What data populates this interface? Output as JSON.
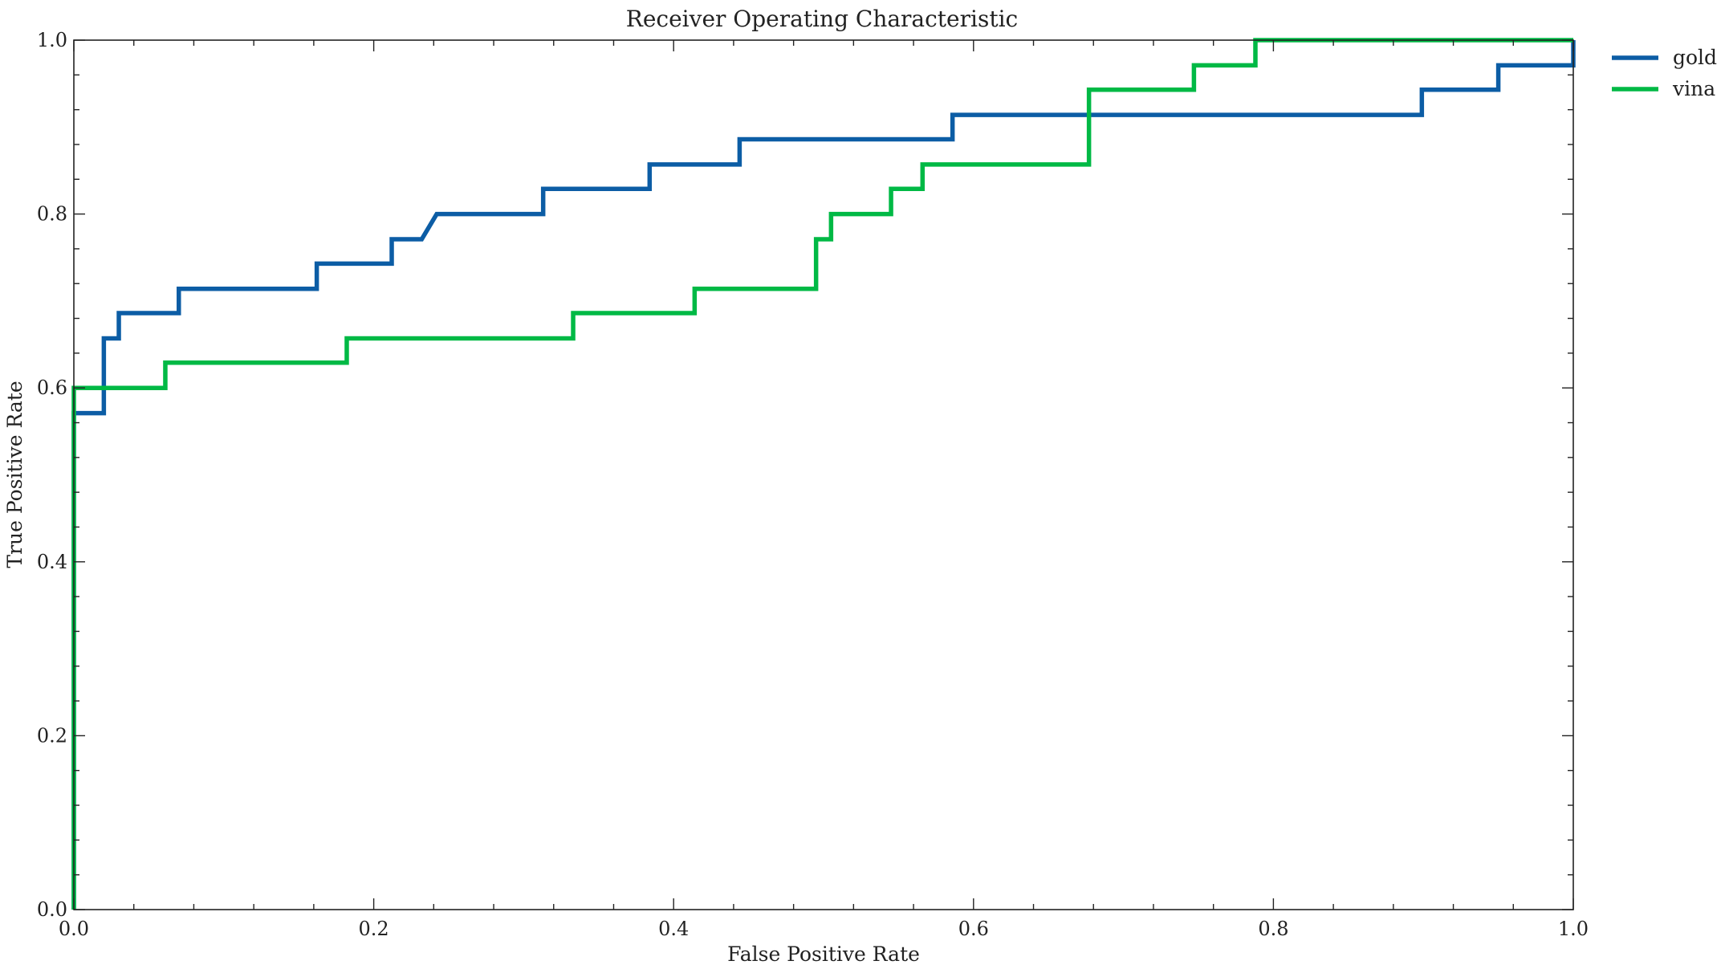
{
  "chart_data": {
    "type": "line",
    "title": "Receiver Operating Characteristic",
    "xlabel": "False Positive Rate",
    "ylabel": "True Positive Rate",
    "xlim": [
      0,
      1
    ],
    "ylim": [
      0,
      1
    ],
    "x_ticks": [
      "0.0",
      "0.2",
      "0.4",
      "0.6",
      "0.8",
      "1.0"
    ],
    "y_ticks": [
      "0.0",
      "0.2",
      "0.4",
      "0.6",
      "0.8",
      "1.0"
    ],
    "grid": false,
    "legend_position": "outside-top-right",
    "series": [
      {
        "name": "gold",
        "color": "#0C5DA5",
        "step": true,
        "x": [
          0.0,
          0.0,
          0.02,
          0.02,
          0.03,
          0.03,
          0.07,
          0.07,
          0.162,
          0.162,
          0.212,
          0.212,
          0.232,
          0.242,
          0.313,
          0.313,
          0.384,
          0.384,
          0.444,
          0.444,
          0.586,
          0.586,
          0.899,
          0.899,
          0.95,
          0.95,
          1.0,
          1.0
        ],
        "y": [
          0.0,
          0.571,
          0.571,
          0.657,
          0.657,
          0.686,
          0.686,
          0.714,
          0.714,
          0.743,
          0.743,
          0.771,
          0.771,
          0.8,
          0.8,
          0.829,
          0.829,
          0.857,
          0.857,
          0.886,
          0.886,
          0.914,
          0.914,
          0.943,
          0.943,
          0.971,
          0.971,
          1.0
        ]
      },
      {
        "name": "vina",
        "color": "#00B945",
        "step": true,
        "x": [
          0.0,
          0.0,
          0.061,
          0.061,
          0.182,
          0.182,
          0.333,
          0.333,
          0.414,
          0.414,
          0.495,
          0.495,
          0.505,
          0.505,
          0.545,
          0.545,
          0.566,
          0.566,
          0.677,
          0.677,
          0.747,
          0.747,
          0.788,
          0.788,
          1.0
        ],
        "y": [
          0.0,
          0.6,
          0.6,
          0.629,
          0.629,
          0.657,
          0.657,
          0.686,
          0.686,
          0.714,
          0.714,
          0.771,
          0.771,
          0.8,
          0.8,
          0.829,
          0.829,
          0.857,
          0.857,
          0.943,
          0.943,
          0.971,
          0.971,
          1.0,
          1.0
        ]
      }
    ]
  }
}
